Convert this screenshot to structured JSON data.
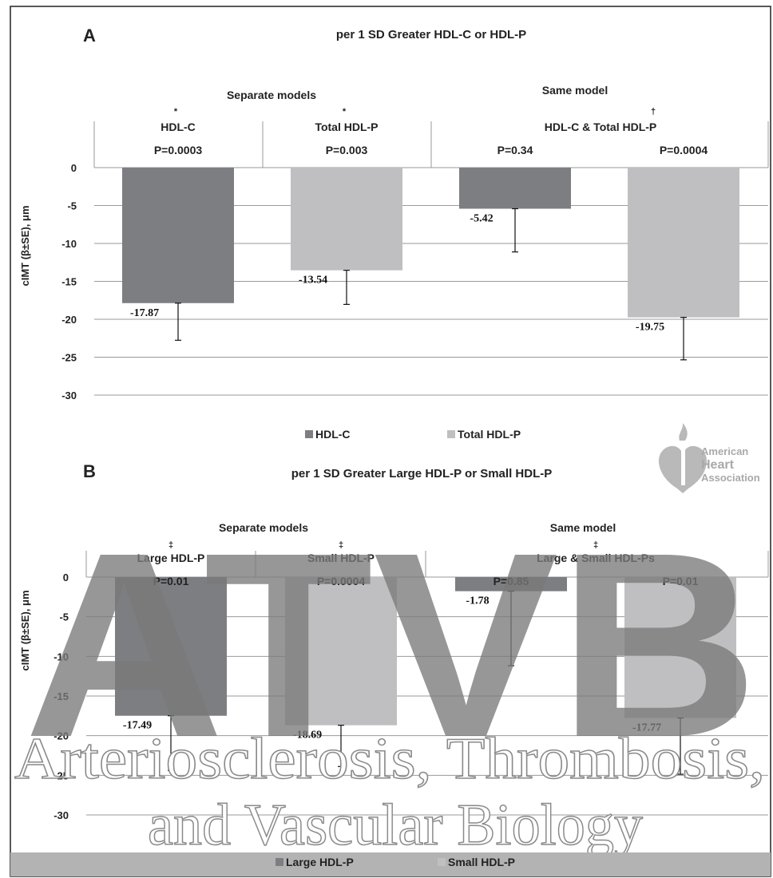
{
  "colors": {
    "dark": "#7d7e82",
    "light": "#bfbfc1",
    "grid": "#9a9a9a",
    "frame": "#222222"
  },
  "panel_labels": [
    "A",
    "B"
  ],
  "chart_data": [
    {
      "type": "bar",
      "panel": "A",
      "title": "per 1 SD Greater HDL-C or HDL-P",
      "ylabel": "cIMT (β±SE), μm",
      "ylim": [
        -30,
        0
      ],
      "yticks": [
        0,
        -5,
        -10,
        -15,
        -20,
        -25,
        -30
      ],
      "grid": true,
      "groups": [
        {
          "label": "Separate models"
        },
        {
          "label": "Same model"
        }
      ],
      "columns": [
        {
          "label": "HDL-C",
          "mark": "*"
        },
        {
          "label": "Total HDL-P",
          "mark": "*"
        },
        {
          "label": "HDL-C & Total HDL-P",
          "mark": "†"
        }
      ],
      "bars": [
        {
          "series": "HDL-C",
          "value": -17.87,
          "se": 4.9,
          "p": "P=0.0003",
          "label": "-17.87"
        },
        {
          "series": "Total HDL-P",
          "value": -13.54,
          "se": 4.5,
          "p": "P=0.003",
          "label": "-13.54"
        },
        {
          "series": "HDL-C",
          "value": -5.42,
          "se": 5.7,
          "p": "P=0.34",
          "label": "-5.42"
        },
        {
          "series": "Total HDL-P",
          "value": -19.75,
          "se": 5.6,
          "p": "P=0.0004",
          "label": "-19.75"
        }
      ],
      "legend": [
        {
          "name": "HDL-C",
          "color": "#7d7e82"
        },
        {
          "name": "Total HDL-P",
          "color": "#bfbfc1"
        }
      ],
      "legend_position": "bottom"
    },
    {
      "type": "bar",
      "panel": "B",
      "title": "per 1 SD Greater Large HDL-P or Small HDL-P",
      "ylabel": "cIMT (β±SE), μm",
      "ylim": [
        -30,
        0
      ],
      "yticks": [
        0,
        -5,
        -10,
        -15,
        -20,
        -25,
        -30
      ],
      "grid": true,
      "groups": [
        {
          "label": "Separate models"
        },
        {
          "label": "Same model"
        }
      ],
      "columns": [
        {
          "label": "Large HDL-P",
          "mark": "‡"
        },
        {
          "label": "Small HDL-P",
          "mark": "‡"
        },
        {
          "label": "Large & Small HDL-Ps",
          "mark": "‡"
        }
      ],
      "bars": [
        {
          "series": "Large HDL-P",
          "value": -17.49,
          "se": 6.9,
          "p": "P=0.01",
          "label": "-17.49"
        },
        {
          "series": "Small HDL-P",
          "value": -18.69,
          "se": 5.2,
          "p": "P=0.0004",
          "label": "-18.69"
        },
        {
          "series": "Large HDL-P",
          "value": -1.78,
          "se": 9.4,
          "p": "P=0.85",
          "label": "-1.78"
        },
        {
          "series": "Small HDL-P",
          "value": -17.77,
          "se": 7.1,
          "p": "P=0.01",
          "label": "-17.77"
        }
      ],
      "legend": [
        {
          "name": "Large HDL-P",
          "color": "#7d7e82"
        },
        {
          "name": "Small HDL-P",
          "color": "#bfbfc1"
        }
      ],
      "legend_position": "bottom"
    }
  ],
  "watermark": {
    "logo_text": "ATVB",
    "journal_line1": "Arteriosclerosis, Thrombosis,",
    "journal_line2": "and Vascular Biology",
    "aha_line1": "American",
    "aha_line2": "Heart",
    "aha_line3": "Association"
  }
}
